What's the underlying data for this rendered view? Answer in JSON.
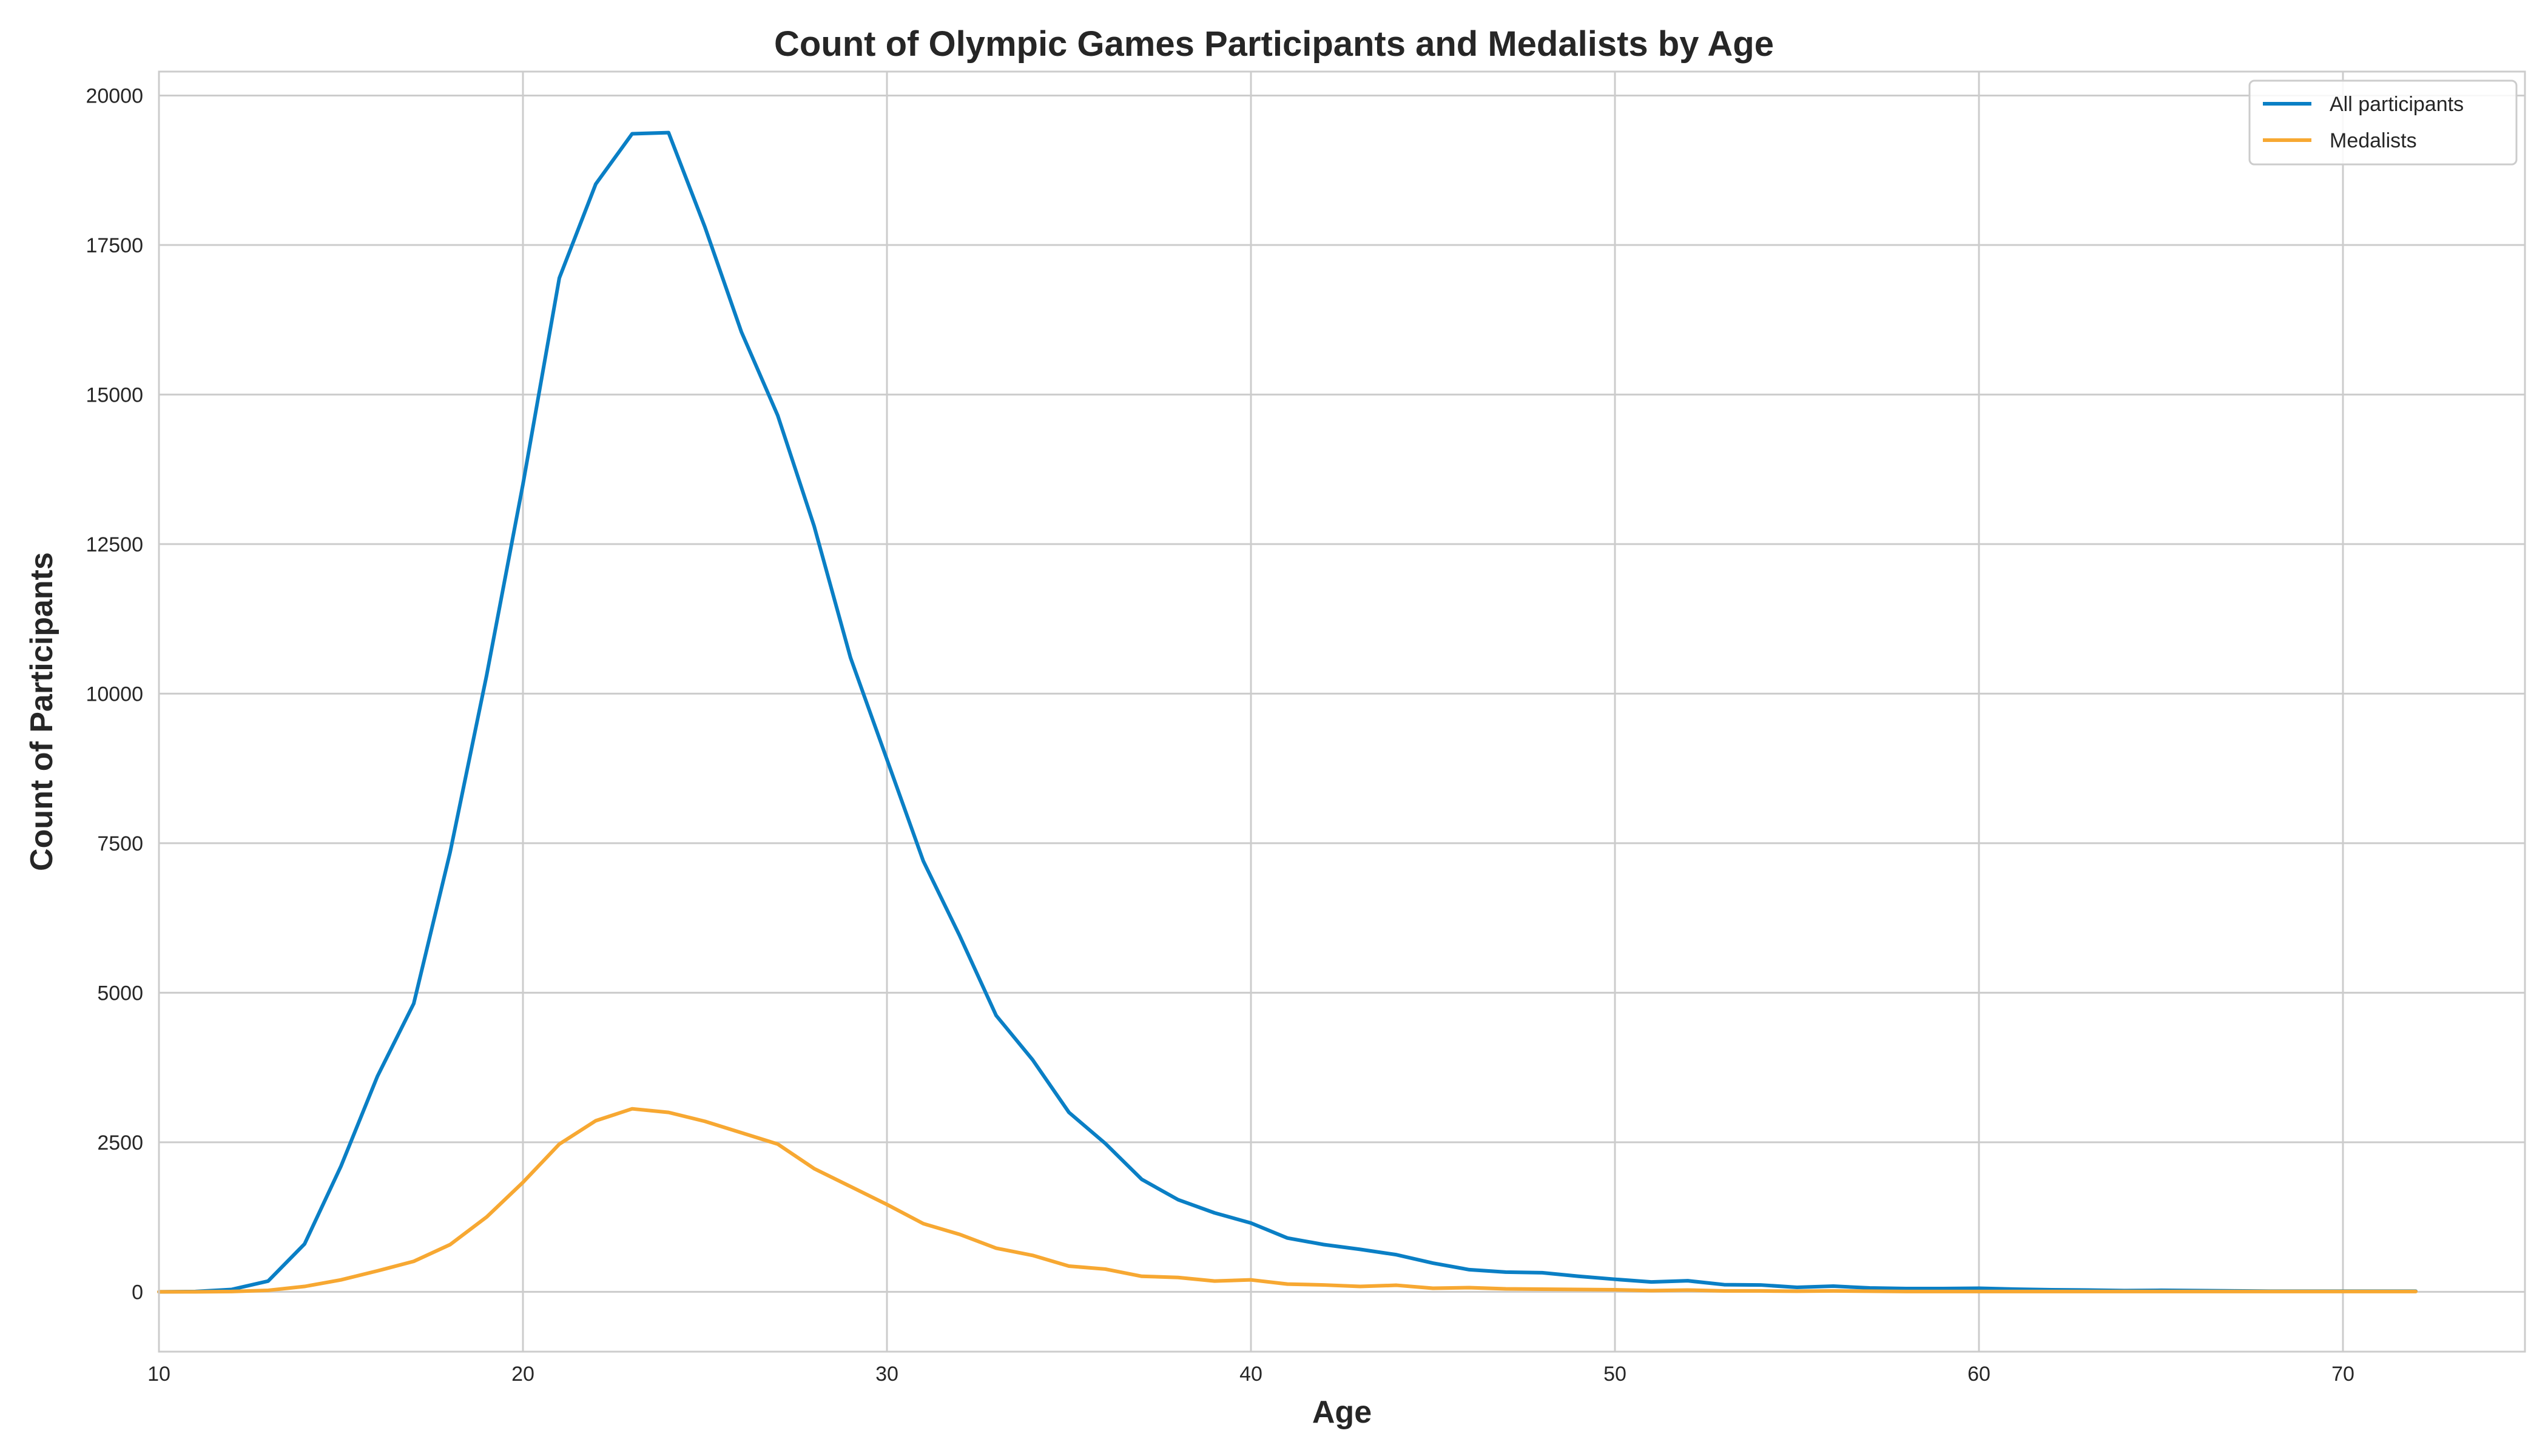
{
  "chart_data": {
    "type": "line",
    "title": "Count of Olympic Games Participants and Medalists by Age",
    "xlabel": "Age",
    "ylabel": "Count of Participants",
    "xlim": [
      10,
      75
    ],
    "ylim": [
      -1000,
      20400
    ],
    "xticks": [
      10,
      20,
      30,
      40,
      50,
      60,
      70
    ],
    "yticks": [
      0,
      2500,
      5000,
      7500,
      10000,
      12500,
      15000,
      17500,
      20000
    ],
    "grid": true,
    "legend_position": "top-right",
    "x": [
      10,
      11,
      12,
      13,
      14,
      15,
      16,
      17,
      18,
      19,
      20,
      21,
      22,
      23,
      24,
      25,
      26,
      27,
      28,
      29,
      30,
      31,
      32,
      33,
      34,
      35,
      36,
      37,
      38,
      39,
      40,
      41,
      42,
      43,
      44,
      45,
      46,
      47,
      48,
      49,
      50,
      51,
      52,
      53,
      54,
      55,
      56,
      57,
      58,
      59,
      60,
      61,
      62,
      63,
      64,
      65,
      66,
      67,
      68,
      69,
      70,
      71,
      72
    ],
    "series": [
      {
        "name": "All participants",
        "color": "#0a7fc5",
        "values": [
          0,
          5,
          40,
          180,
          800,
          2100,
          3600,
          4820,
          7350,
          10300,
          13500,
          16950,
          18520,
          19360,
          19380,
          17800,
          16050,
          14650,
          12800,
          10600,
          8900,
          7200,
          5950,
          4620,
          3880,
          3000,
          2480,
          1880,
          1540,
          1320,
          1150,
          900,
          790,
          710,
          620,
          480,
          370,
          330,
          320,
          260,
          210,
          165,
          185,
          120,
          115,
          75,
          95,
          65,
          55,
          55,
          60,
          45,
          35,
          30,
          20,
          25,
          20,
          15,
          10,
          10,
          10,
          10,
          10
        ]
      },
      {
        "name": "Medalists",
        "color": "#f7a832",
        "values": [
          0,
          0,
          5,
          25,
          90,
          200,
          350,
          510,
          790,
          1250,
          1830,
          2470,
          2860,
          3060,
          3000,
          2850,
          2660,
          2470,
          2060,
          1760,
          1460,
          1140,
          960,
          730,
          610,
          430,
          380,
          260,
          240,
          180,
          200,
          130,
          115,
          90,
          110,
          60,
          70,
          50,
          45,
          40,
          35,
          20,
          30,
          15,
          15,
          10,
          15,
          10,
          5,
          5,
          5,
          5,
          5,
          5,
          5,
          5,
          5,
          5,
          5,
          5,
          5,
          5,
          5
        ]
      }
    ]
  }
}
